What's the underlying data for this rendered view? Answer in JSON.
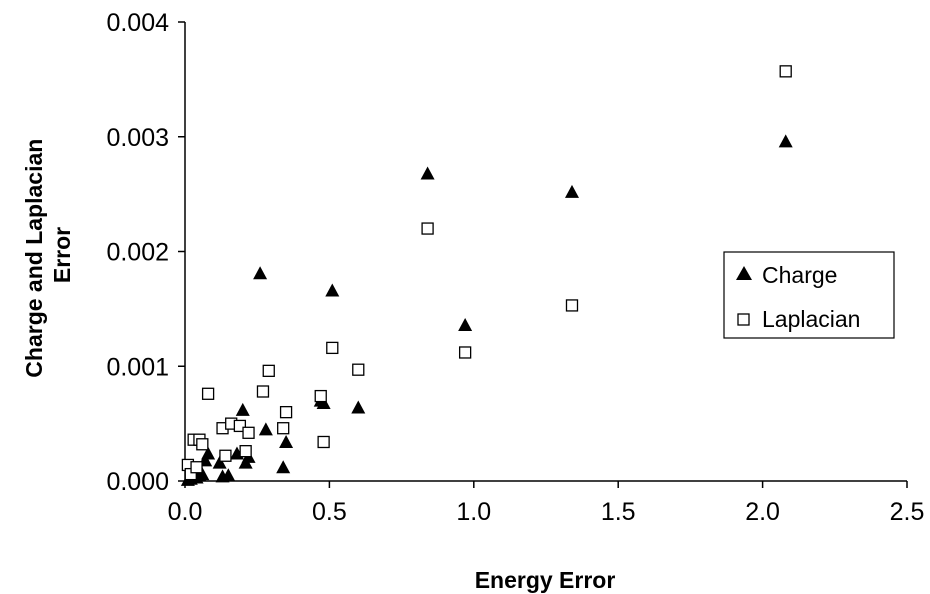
{
  "chart_data": {
    "type": "scatter",
    "title": "",
    "xlabel": "Energy Error",
    "ylabel": "Charge and Laplacian Error",
    "ylabel_lines": [
      "Charge and Laplacian",
      "Error"
    ],
    "xlim": [
      0,
      2.5
    ],
    "ylim": [
      0,
      0.004
    ],
    "x_ticks": [
      0,
      0.5,
      1.0,
      1.5,
      2.0,
      2.5
    ],
    "x_tick_labels": [
      "0.0",
      "0.5",
      "1.0",
      "1.5",
      "2.0",
      "2.5"
    ],
    "y_ticks": [
      0,
      0.001,
      0.002,
      0.003,
      0.004
    ],
    "y_tick_labels": [
      "0.000",
      "0.001",
      "0.002",
      "0.003",
      "0.004"
    ],
    "grid": false,
    "legend_position": "right",
    "series": [
      {
        "name": "Charge",
        "marker": "filled-triangle",
        "color": "#000000",
        "points": [
          [
            0.01,
            1e-05
          ],
          [
            0.02,
            2e-05
          ],
          [
            0.03,
            3e-05
          ],
          [
            0.04,
            3e-05
          ],
          [
            0.05,
            5e-05
          ],
          [
            0.06,
            6e-05
          ],
          [
            0.07,
            0.00018
          ],
          [
            0.08,
            0.00024
          ],
          [
            0.12,
            0.00016
          ],
          [
            0.13,
            4e-05
          ],
          [
            0.15,
            5e-05
          ],
          [
            0.18,
            0.00024
          ],
          [
            0.2,
            0.00062
          ],
          [
            0.21,
            0.00016
          ],
          [
            0.22,
            0.00021
          ],
          [
            0.26,
            0.00181
          ],
          [
            0.28,
            0.00045
          ],
          [
            0.34,
            0.00012
          ],
          [
            0.35,
            0.00034
          ],
          [
            0.47,
            0.0007
          ],
          [
            0.48,
            0.00068
          ],
          [
            0.51,
            0.00166
          ],
          [
            0.6,
            0.00064
          ],
          [
            0.84,
            0.00268
          ],
          [
            0.97,
            0.00136
          ],
          [
            1.34,
            0.00252
          ],
          [
            2.08,
            0.00296
          ]
        ]
      },
      {
        "name": "Laplacian",
        "marker": "open-square",
        "color": "#000000",
        "points": [
          [
            0.01,
            0.00014
          ],
          [
            0.02,
            6e-05
          ],
          [
            0.03,
            0.00036
          ],
          [
            0.04,
            0.00012
          ],
          [
            0.05,
            0.00036
          ],
          [
            0.06,
            0.00032
          ],
          [
            0.08,
            0.00076
          ],
          [
            0.13,
            0.00046
          ],
          [
            0.14,
            0.00022
          ],
          [
            0.16,
            0.0005
          ],
          [
            0.19,
            0.00048
          ],
          [
            0.21,
            0.00026
          ],
          [
            0.22,
            0.00042
          ],
          [
            0.27,
            0.00078
          ],
          [
            0.29,
            0.00096
          ],
          [
            0.34,
            0.00046
          ],
          [
            0.35,
            0.0006
          ],
          [
            0.47,
            0.00074
          ],
          [
            0.48,
            0.00034
          ],
          [
            0.51,
            0.00116
          ],
          [
            0.6,
            0.00097
          ],
          [
            0.84,
            0.0022
          ],
          [
            0.97,
            0.00112
          ],
          [
            1.34,
            0.00153
          ],
          [
            2.08,
            0.00357
          ]
        ]
      }
    ]
  }
}
